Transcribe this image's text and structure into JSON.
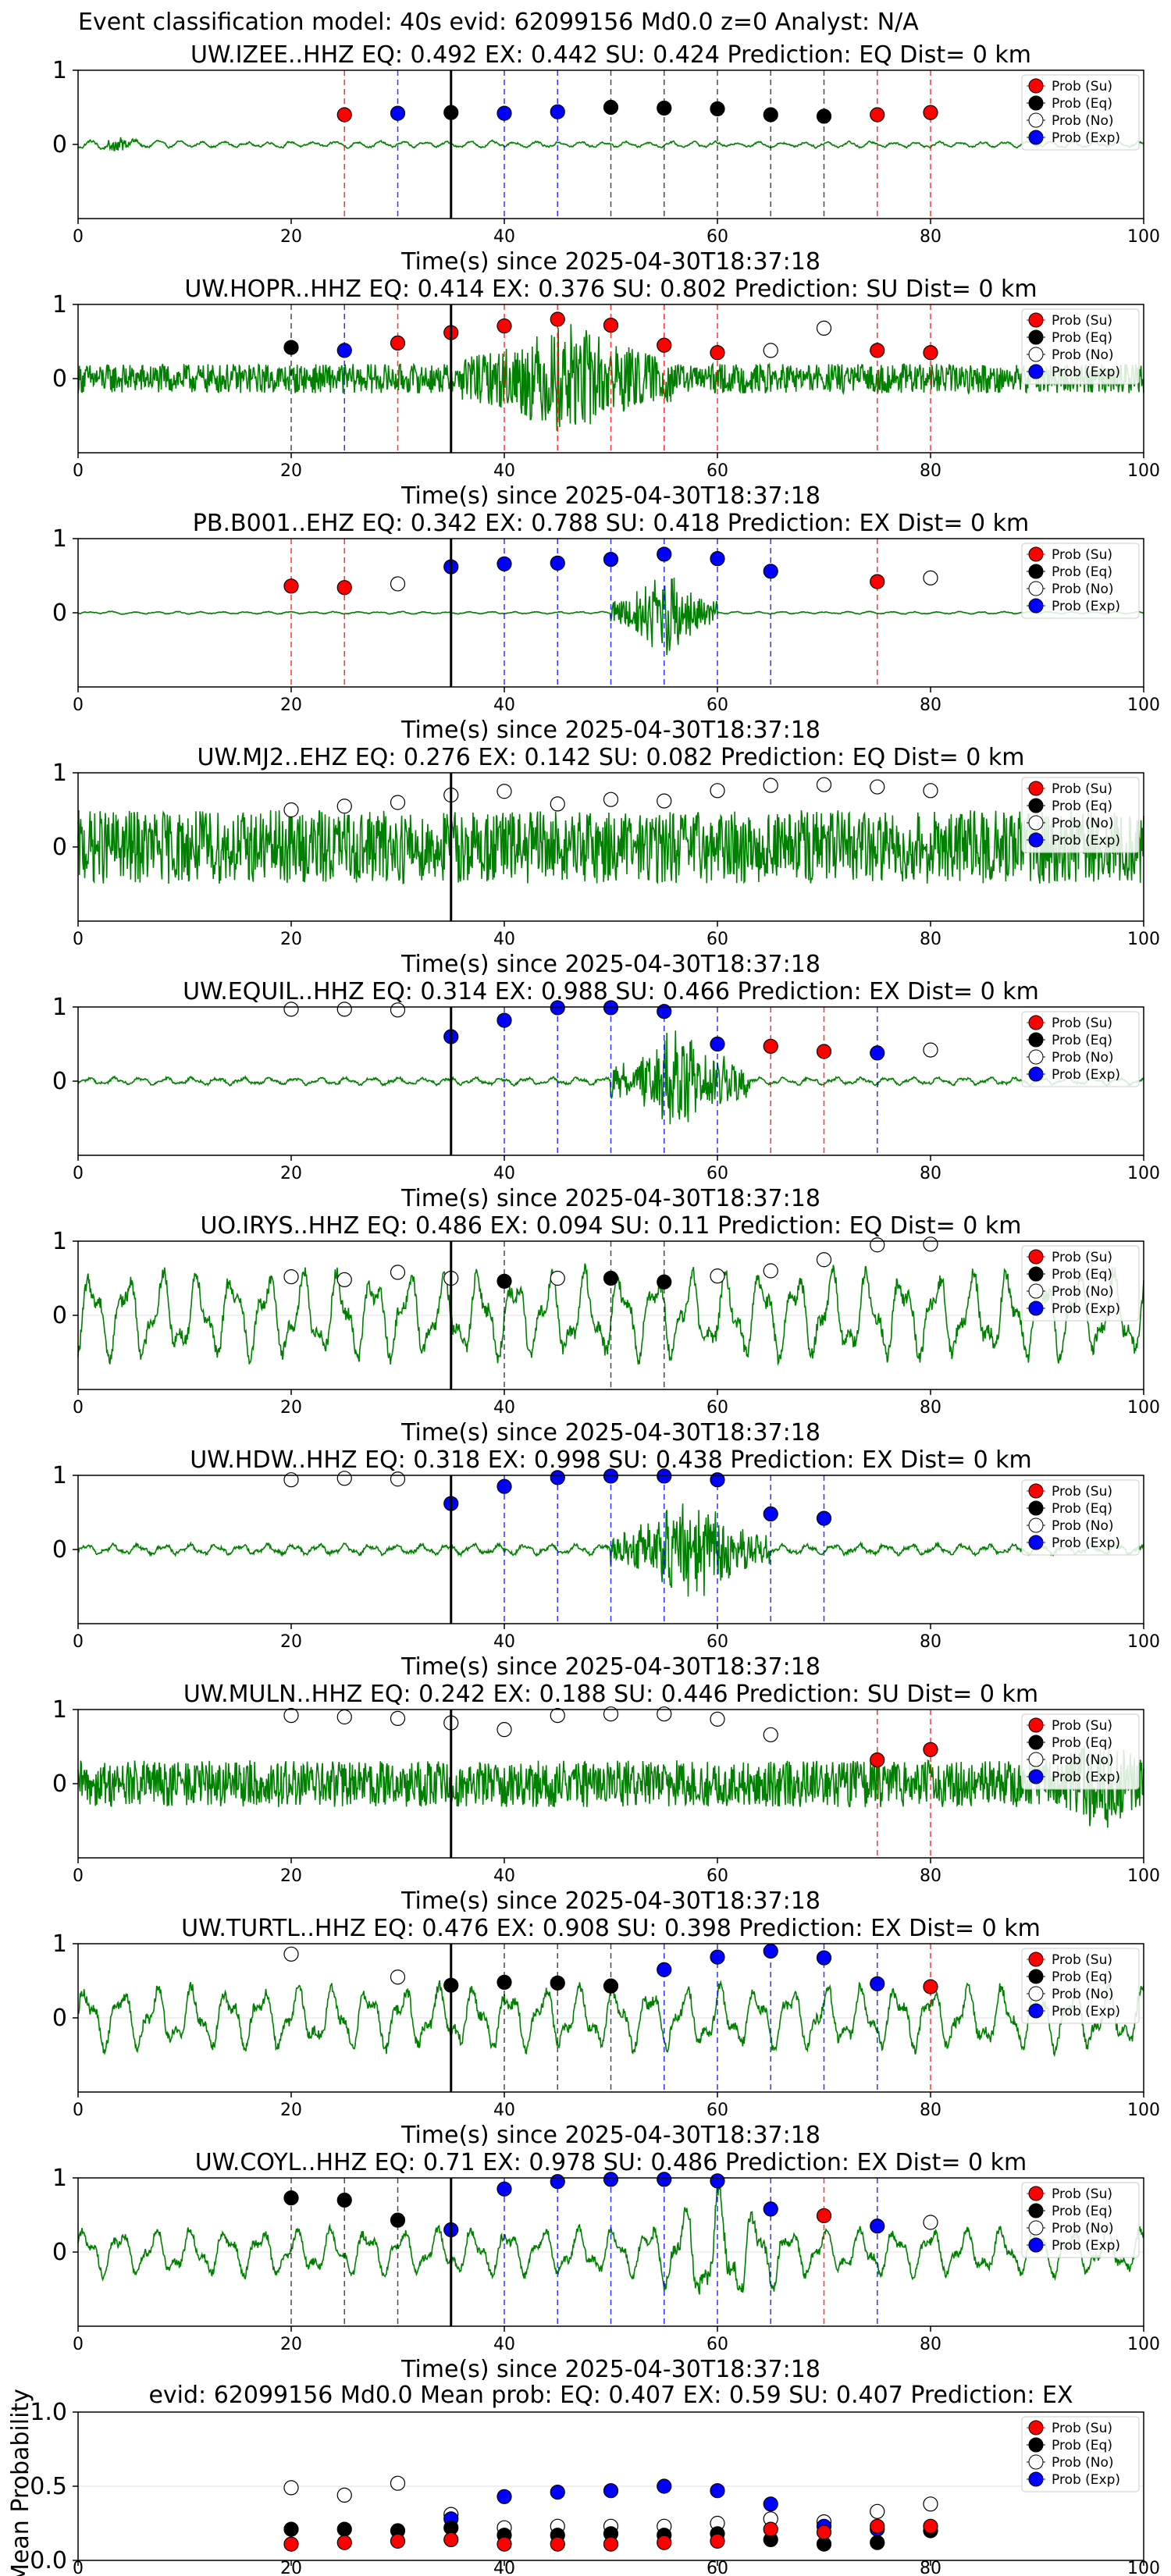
{
  "suptitle": "Event classification model: 40s evid: 62099156 Md0.0 z=0 Analyst: N/A",
  "common": {
    "xlabel": "Time(s) since 2025-04-30T18:37:18",
    "xticks": [
      0,
      20,
      40,
      60,
      80,
      100
    ],
    "yticks": [
      0,
      1
    ],
    "xlim": [
      0,
      100
    ],
    "ylim": [
      -1,
      1
    ],
    "event_line_time": 35,
    "legend": [
      "Prob (Su)",
      "Prob (Eq)",
      "Prob (No)",
      "Prob (Exp)"
    ],
    "colors": {
      "su": "#ff0000",
      "eq": "#000000",
      "no": "#ffffff",
      "exp": "#0000ff",
      "trace": "#008000"
    }
  },
  "chart_data": [
    {
      "type": "line",
      "title": "UW.IZEE..HHZ   EQ: 0.492  EX: 0.442  SU: 0.424   Prediction: EQ    Dist= 0 km",
      "trace": {
        "style": "quiet",
        "amp": 0.05,
        "burst_start": 0,
        "burst_end": 8,
        "burst_amp": 0.12
      },
      "points": [
        [
          25,
          "su",
          0.4
        ],
        [
          30,
          "exp",
          0.42
        ],
        [
          35,
          "eq",
          0.43
        ],
        [
          40,
          "exp",
          0.42
        ],
        [
          45,
          "exp",
          0.44
        ],
        [
          50,
          "eq",
          0.5
        ],
        [
          55,
          "eq",
          0.49
        ],
        [
          60,
          "eq",
          0.48
        ],
        [
          65,
          "eq",
          0.4
        ],
        [
          70,
          "eq",
          0.38
        ],
        [
          75,
          "su",
          0.4
        ],
        [
          80,
          "su",
          0.43
        ]
      ]
    },
    {
      "type": "line",
      "title": "UW.HOPR..HHZ   EQ: 0.414  EX: 0.376  SU: 0.802   Prediction: SU    Dist= 0 km",
      "trace": {
        "style": "noisy",
        "amp": 0.22,
        "burst_start": 36,
        "burst_end": 56,
        "burst_amp": 0.85
      },
      "points": [
        [
          20,
          "eq",
          0.42
        ],
        [
          25,
          "exp",
          0.38
        ],
        [
          30,
          "su",
          0.48
        ],
        [
          35,
          "su",
          0.62
        ],
        [
          40,
          "su",
          0.71
        ],
        [
          45,
          "su",
          0.8
        ],
        [
          50,
          "su",
          0.72
        ],
        [
          55,
          "su",
          0.45
        ],
        [
          60,
          "su",
          0.35
        ],
        [
          65,
          "no",
          0.38
        ],
        [
          70,
          "no",
          0.68
        ],
        [
          75,
          "su",
          0.38
        ],
        [
          80,
          "su",
          0.35
        ]
      ]
    },
    {
      "type": "line",
      "title": "PB.B001..EHZ   EQ: 0.342  EX: 0.788  SU: 0.418   Prediction: EX    Dist= 0 km",
      "trace": {
        "style": "quiet",
        "amp": 0.02,
        "burst_start": 50,
        "burst_end": 60,
        "burst_amp": 0.75
      },
      "points": [
        [
          20,
          "su",
          0.36
        ],
        [
          25,
          "su",
          0.34
        ],
        [
          30,
          "no",
          0.39
        ],
        [
          35,
          "exp",
          0.62
        ],
        [
          40,
          "exp",
          0.66
        ],
        [
          45,
          "exp",
          0.67
        ],
        [
          50,
          "exp",
          0.72
        ],
        [
          55,
          "exp",
          0.79
        ],
        [
          60,
          "exp",
          0.73
        ],
        [
          65,
          "exp",
          0.56
        ],
        [
          75,
          "su",
          0.42
        ],
        [
          80,
          "no",
          0.47
        ]
      ]
    },
    {
      "type": "line",
      "title": "UW.MJ2..EHZ   EQ: 0.276  EX: 0.142  SU: 0.082   Prediction: EQ    Dist= 0 km",
      "trace": {
        "style": "noisy",
        "amp": 0.55,
        "burst_start": 0,
        "burst_end": 0,
        "burst_amp": 0
      },
      "points": [
        [
          20,
          "no",
          0.5
        ],
        [
          25,
          "no",
          0.55
        ],
        [
          30,
          "no",
          0.6
        ],
        [
          35,
          "no",
          0.7
        ],
        [
          40,
          "no",
          0.75
        ],
        [
          45,
          "no",
          0.58
        ],
        [
          50,
          "no",
          0.64
        ],
        [
          55,
          "no",
          0.62
        ],
        [
          60,
          "no",
          0.76
        ],
        [
          65,
          "no",
          0.83
        ],
        [
          70,
          "no",
          0.84
        ],
        [
          75,
          "no",
          0.81
        ],
        [
          80,
          "no",
          0.76
        ]
      ]
    },
    {
      "type": "line",
      "title": "UW.EQUIL..HHZ   EQ: 0.314  EX: 0.988  SU: 0.466   Prediction: EX    Dist= 0 km",
      "trace": {
        "style": "smooth",
        "amp": 0.05,
        "burst_start": 50,
        "burst_end": 63,
        "burst_amp": 0.7
      },
      "points": [
        [
          20,
          "no",
          0.97
        ],
        [
          25,
          "no",
          0.97
        ],
        [
          30,
          "no",
          0.96
        ],
        [
          35,
          "exp",
          0.6
        ],
        [
          40,
          "exp",
          0.82
        ],
        [
          45,
          "exp",
          0.99
        ],
        [
          50,
          "exp",
          0.99
        ],
        [
          55,
          "exp",
          0.94
        ],
        [
          60,
          "exp",
          0.5
        ],
        [
          65,
          "su",
          0.47
        ],
        [
          70,
          "su",
          0.4
        ],
        [
          75,
          "exp",
          0.38
        ],
        [
          80,
          "no",
          0.42
        ]
      ]
    },
    {
      "type": "line",
      "title": "UO.IRYS..HHZ   EQ: 0.486  EX: 0.094  SU: 0.11   Prediction: EQ    Dist= 0 km",
      "trace": {
        "style": "wave",
        "amp": 0.55,
        "burst_start": 0,
        "burst_end": 0,
        "burst_amp": 0
      },
      "points": [
        [
          20,
          "no",
          0.52
        ],
        [
          25,
          "no",
          0.48
        ],
        [
          30,
          "no",
          0.58
        ],
        [
          35,
          "no",
          0.5
        ],
        [
          40,
          "eq",
          0.46
        ],
        [
          45,
          "no",
          0.5
        ],
        [
          50,
          "eq",
          0.5
        ],
        [
          55,
          "eq",
          0.45
        ],
        [
          60,
          "no",
          0.53
        ],
        [
          65,
          "no",
          0.6
        ],
        [
          70,
          "no",
          0.75
        ],
        [
          75,
          "no",
          0.95
        ],
        [
          80,
          "no",
          0.96
        ]
      ]
    },
    {
      "type": "line",
      "title": "UW.HDW..HHZ   EQ: 0.318  EX: 0.998  SU: 0.438   Prediction: EX    Dist= 0 km",
      "trace": {
        "style": "smooth",
        "amp": 0.07,
        "burst_start": 50,
        "burst_end": 65,
        "burst_amp": 0.65
      },
      "points": [
        [
          20,
          "no",
          0.94
        ],
        [
          25,
          "no",
          0.96
        ],
        [
          30,
          "no",
          0.95
        ],
        [
          35,
          "exp",
          0.62
        ],
        [
          40,
          "exp",
          0.85
        ],
        [
          45,
          "exp",
          0.97
        ],
        [
          50,
          "exp",
          0.99
        ],
        [
          55,
          "exp",
          0.99
        ],
        [
          60,
          "exp",
          0.94
        ],
        [
          65,
          "exp",
          0.48
        ],
        [
          70,
          "exp",
          0.42
        ]
      ]
    },
    {
      "type": "line",
      "title": "UW.MULN..HHZ   EQ: 0.242  EX: 0.188  SU: 0.446   Prediction: SU    Dist= 0 km",
      "trace": {
        "style": "noisy",
        "amp": 0.35,
        "burst_start": 92,
        "burst_end": 100,
        "burst_amp": 0.75
      },
      "points": [
        [
          20,
          "no",
          0.92
        ],
        [
          25,
          "no",
          0.9
        ],
        [
          30,
          "no",
          0.88
        ],
        [
          35,
          "no",
          0.82
        ],
        [
          40,
          "no",
          0.73
        ],
        [
          45,
          "no",
          0.92
        ],
        [
          50,
          "no",
          0.94
        ],
        [
          55,
          "no",
          0.94
        ],
        [
          60,
          "no",
          0.87
        ],
        [
          65,
          "no",
          0.66
        ],
        [
          75,
          "su",
          0.32
        ],
        [
          80,
          "su",
          0.46
        ]
      ]
    },
    {
      "type": "line",
      "title": "UW.TURTL..HHZ   EQ: 0.476  EX: 0.908  SU: 0.398   Prediction: EX    Dist= 0 km",
      "trace": {
        "style": "wave",
        "amp": 0.4,
        "burst_start": 0,
        "burst_end": 0,
        "burst_amp": 0
      },
      "points": [
        [
          20,
          "no",
          0.86
        ],
        [
          30,
          "no",
          0.55
        ],
        [
          35,
          "eq",
          0.44
        ],
        [
          40,
          "eq",
          0.48
        ],
        [
          45,
          "eq",
          0.47
        ],
        [
          50,
          "eq",
          0.43
        ],
        [
          55,
          "exp",
          0.65
        ],
        [
          60,
          "exp",
          0.82
        ],
        [
          65,
          "exp",
          0.9
        ],
        [
          70,
          "exp",
          0.81
        ],
        [
          75,
          "exp",
          0.46
        ],
        [
          80,
          "su",
          0.42
        ]
      ]
    },
    {
      "type": "line",
      "title": "UW.COYL..HHZ   EQ: 0.71  EX: 0.978  SU: 0.486   Prediction: EX    Dist= 0 km",
      "trace": {
        "style": "wave",
        "amp": 0.3,
        "burst_start": 54,
        "burst_end": 66,
        "burst_amp": 0.85
      },
      "points": [
        [
          20,
          "eq",
          0.73
        ],
        [
          25,
          "eq",
          0.7
        ],
        [
          30,
          "eq",
          0.43
        ],
        [
          35,
          "exp",
          0.3
        ],
        [
          40,
          "exp",
          0.85
        ],
        [
          45,
          "exp",
          0.95
        ],
        [
          50,
          "exp",
          0.98
        ],
        [
          55,
          "exp",
          0.98
        ],
        [
          60,
          "exp",
          0.96
        ],
        [
          65,
          "exp",
          0.58
        ],
        [
          70,
          "su",
          0.49
        ],
        [
          75,
          "exp",
          0.35
        ],
        [
          80,
          "no",
          0.4
        ]
      ]
    }
  ],
  "mean_chart": {
    "type": "scatter",
    "title": "evid: 62099156  Md0.0   Mean prob:    EQ: 0.407  EX: 0.59  SU: 0.407   Prediction: EX",
    "ylabel": "Mean Probability",
    "ylim": [
      0,
      1
    ],
    "yticks": [
      "0.0",
      "0.5",
      "1.0"
    ],
    "x": [
      20,
      25,
      30,
      35,
      40,
      45,
      50,
      55,
      60,
      65,
      70,
      75,
      80
    ],
    "series": [
      {
        "name": "Prob (No)",
        "key": "no",
        "values": [
          0.49,
          0.44,
          0.52,
          0.31,
          0.22,
          0.23,
          0.23,
          0.23,
          0.25,
          0.28,
          0.26,
          0.33,
          0.38
        ]
      },
      {
        "name": "Prob (Exp)",
        "key": "exp",
        "values": [
          null,
          null,
          null,
          0.28,
          0.43,
          0.46,
          0.47,
          0.5,
          0.47,
          0.38,
          0.23,
          0.21,
          null
        ]
      },
      {
        "name": "Prob (Eq)",
        "key": "eq",
        "values": [
          0.21,
          0.21,
          0.2,
          0.22,
          0.17,
          0.17,
          0.18,
          0.17,
          0.18,
          0.14,
          0.11,
          0.12,
          0.2
        ]
      },
      {
        "name": "Prob (Su)",
        "key": "su",
        "values": [
          0.11,
          0.12,
          0.13,
          0.14,
          0.11,
          0.11,
          0.11,
          0.12,
          0.13,
          0.21,
          0.19,
          0.23,
          0.23
        ]
      }
    ]
  }
}
